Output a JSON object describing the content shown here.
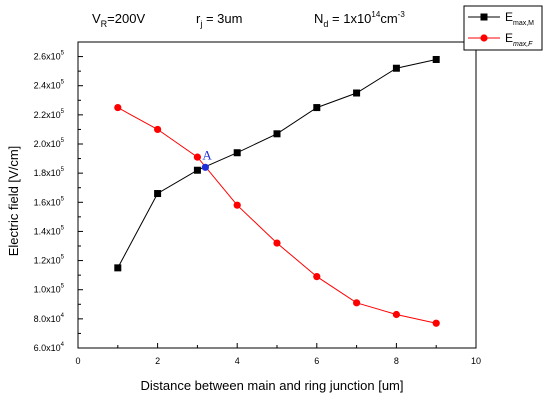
{
  "chart_data": {
    "type": "line",
    "title": "",
    "xlabel": "Distance between main and ring junction [um]",
    "ylabel": "Electric field [V/cm]",
    "xlim": [
      0,
      10
    ],
    "ylim": [
      60000,
      270000
    ],
    "xticks": [
      0,
      2,
      4,
      6,
      8,
      10
    ],
    "yticks": [
      {
        "value": 60000,
        "base": "6.0x10",
        "exp": "4"
      },
      {
        "value": 80000,
        "base": "8.0x10",
        "exp": "4"
      },
      {
        "value": 100000,
        "base": "1.0x10",
        "exp": "5"
      },
      {
        "value": 120000,
        "base": "1.2x10",
        "exp": "5"
      },
      {
        "value": 140000,
        "base": "1.4x10",
        "exp": "5"
      },
      {
        "value": 160000,
        "base": "1.6x10",
        "exp": "5"
      },
      {
        "value": 180000,
        "base": "1.8x10",
        "exp": "5"
      },
      {
        "value": 200000,
        "base": "2.0x10",
        "exp": "5"
      },
      {
        "value": 220000,
        "base": "2.2x10",
        "exp": "5"
      },
      {
        "value": 240000,
        "base": "2.4x10",
        "exp": "5"
      },
      {
        "value": 260000,
        "base": "2.6x10",
        "exp": "5"
      }
    ],
    "header": {
      "vr": {
        "main": "V",
        "sub": "R",
        "rest": "=200V"
      },
      "rj": {
        "main": "r",
        "sub": "j",
        "rest": " = 3um"
      },
      "nd": {
        "main": "N",
        "sub": "d",
        "rest": " = 1x10",
        "sup": "14",
        "rest2": "cm",
        "sup2": "-3"
      }
    },
    "series": [
      {
        "legend_main": "E",
        "legend_sub": "max,M",
        "color": "#000000",
        "marker": "square",
        "x": [
          1,
          2,
          3,
          4,
          5,
          6,
          7,
          8,
          9
        ],
        "y": [
          115000,
          166000,
          182000,
          194000,
          207000,
          225000,
          235000,
          252000,
          258000
        ]
      },
      {
        "legend_main": "E",
        "legend_sub": "max,F",
        "color": "#ff0000",
        "marker": "circle",
        "x": [
          1,
          2,
          3,
          4,
          5,
          6,
          7,
          8,
          9
        ],
        "y": [
          225000,
          210000,
          191000,
          158000,
          132000,
          109000,
          91000,
          83000,
          77000
        ]
      }
    ],
    "annotation": {
      "label": "A",
      "x": 3.2,
      "y": 184000,
      "color": "#1f2fd8"
    }
  }
}
